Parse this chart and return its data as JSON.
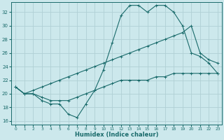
{
  "xlabel": "Humidex (Indice chaleur)",
  "bg_color": "#cce8ec",
  "grid_color": "#b0d0d5",
  "line_color": "#1a6b6b",
  "xlim": [
    -0.5,
    23.5
  ],
  "ylim": [
    15.5,
    33.5
  ],
  "yticks": [
    16,
    18,
    20,
    22,
    24,
    26,
    28,
    30,
    32
  ],
  "xticks": [
    0,
    1,
    2,
    3,
    4,
    5,
    6,
    7,
    8,
    9,
    10,
    11,
    12,
    13,
    14,
    15,
    16,
    17,
    18,
    19,
    20,
    21,
    22,
    23
  ],
  "series": [
    {
      "x": [
        0,
        1,
        2,
        3,
        4,
        5,
        6,
        7,
        8,
        9,
        10,
        11,
        12,
        13,
        14,
        15,
        16,
        17,
        18,
        19,
        20,
        21,
        22,
        23
      ],
      "y": [
        21.0,
        20.0,
        20.0,
        19.5,
        19.0,
        19.0,
        19.0,
        19.5,
        20.0,
        20.5,
        21.0,
        21.5,
        22.0,
        22.0,
        22.0,
        22.0,
        22.5,
        22.5,
        23.0,
        23.0,
        23.0,
        23.0,
        23.0,
        23.0
      ]
    },
    {
      "x": [
        0,
        1,
        2,
        3,
        4,
        5,
        6,
        7,
        8,
        9,
        10,
        11,
        12,
        13,
        14,
        15,
        16,
        17,
        18,
        19,
        20,
        21,
        22,
        23
      ],
      "y": [
        21.0,
        20.0,
        20.5,
        21.0,
        21.5,
        22.0,
        22.5,
        23.0,
        23.5,
        24.0,
        24.5,
        25.0,
        25.5,
        26.0,
        26.5,
        27.0,
        27.5,
        28.0,
        28.5,
        29.0,
        30.0,
        26.0,
        25.0,
        24.5
      ]
    },
    {
      "x": [
        0,
        1,
        2,
        3,
        4,
        5,
        6,
        7,
        8,
        9,
        10,
        11,
        12,
        13,
        14,
        15,
        16,
        17,
        18,
        19,
        20,
        21,
        22,
        23
      ],
      "y": [
        21.0,
        20.0,
        20.0,
        19.0,
        18.5,
        18.5,
        17.0,
        16.5,
        18.5,
        20.5,
        23.5,
        27.5,
        31.5,
        33.0,
        33.0,
        32.0,
        33.0,
        33.0,
        32.0,
        30.0,
        26.0,
        25.5,
        24.5,
        23.0
      ]
    }
  ]
}
